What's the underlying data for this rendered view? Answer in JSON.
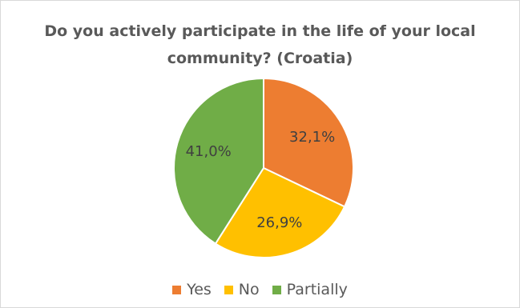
{
  "chart_data": {
    "type": "pie",
    "title_lines": [
      "Do you actively participate in the life of your local",
      "community? (Croatia)"
    ],
    "categories": [
      "Yes",
      "No",
      "Partially"
    ],
    "values": [
      32.1,
      26.9,
      41.0
    ],
    "data_labels": [
      "32,1%",
      "26,9%",
      "41,0%"
    ],
    "colors": [
      "#ED7D31",
      "#FFC000",
      "#70AD47"
    ],
    "legend_position": "bottom",
    "start_angle": "12 o'clock, clockwise"
  }
}
